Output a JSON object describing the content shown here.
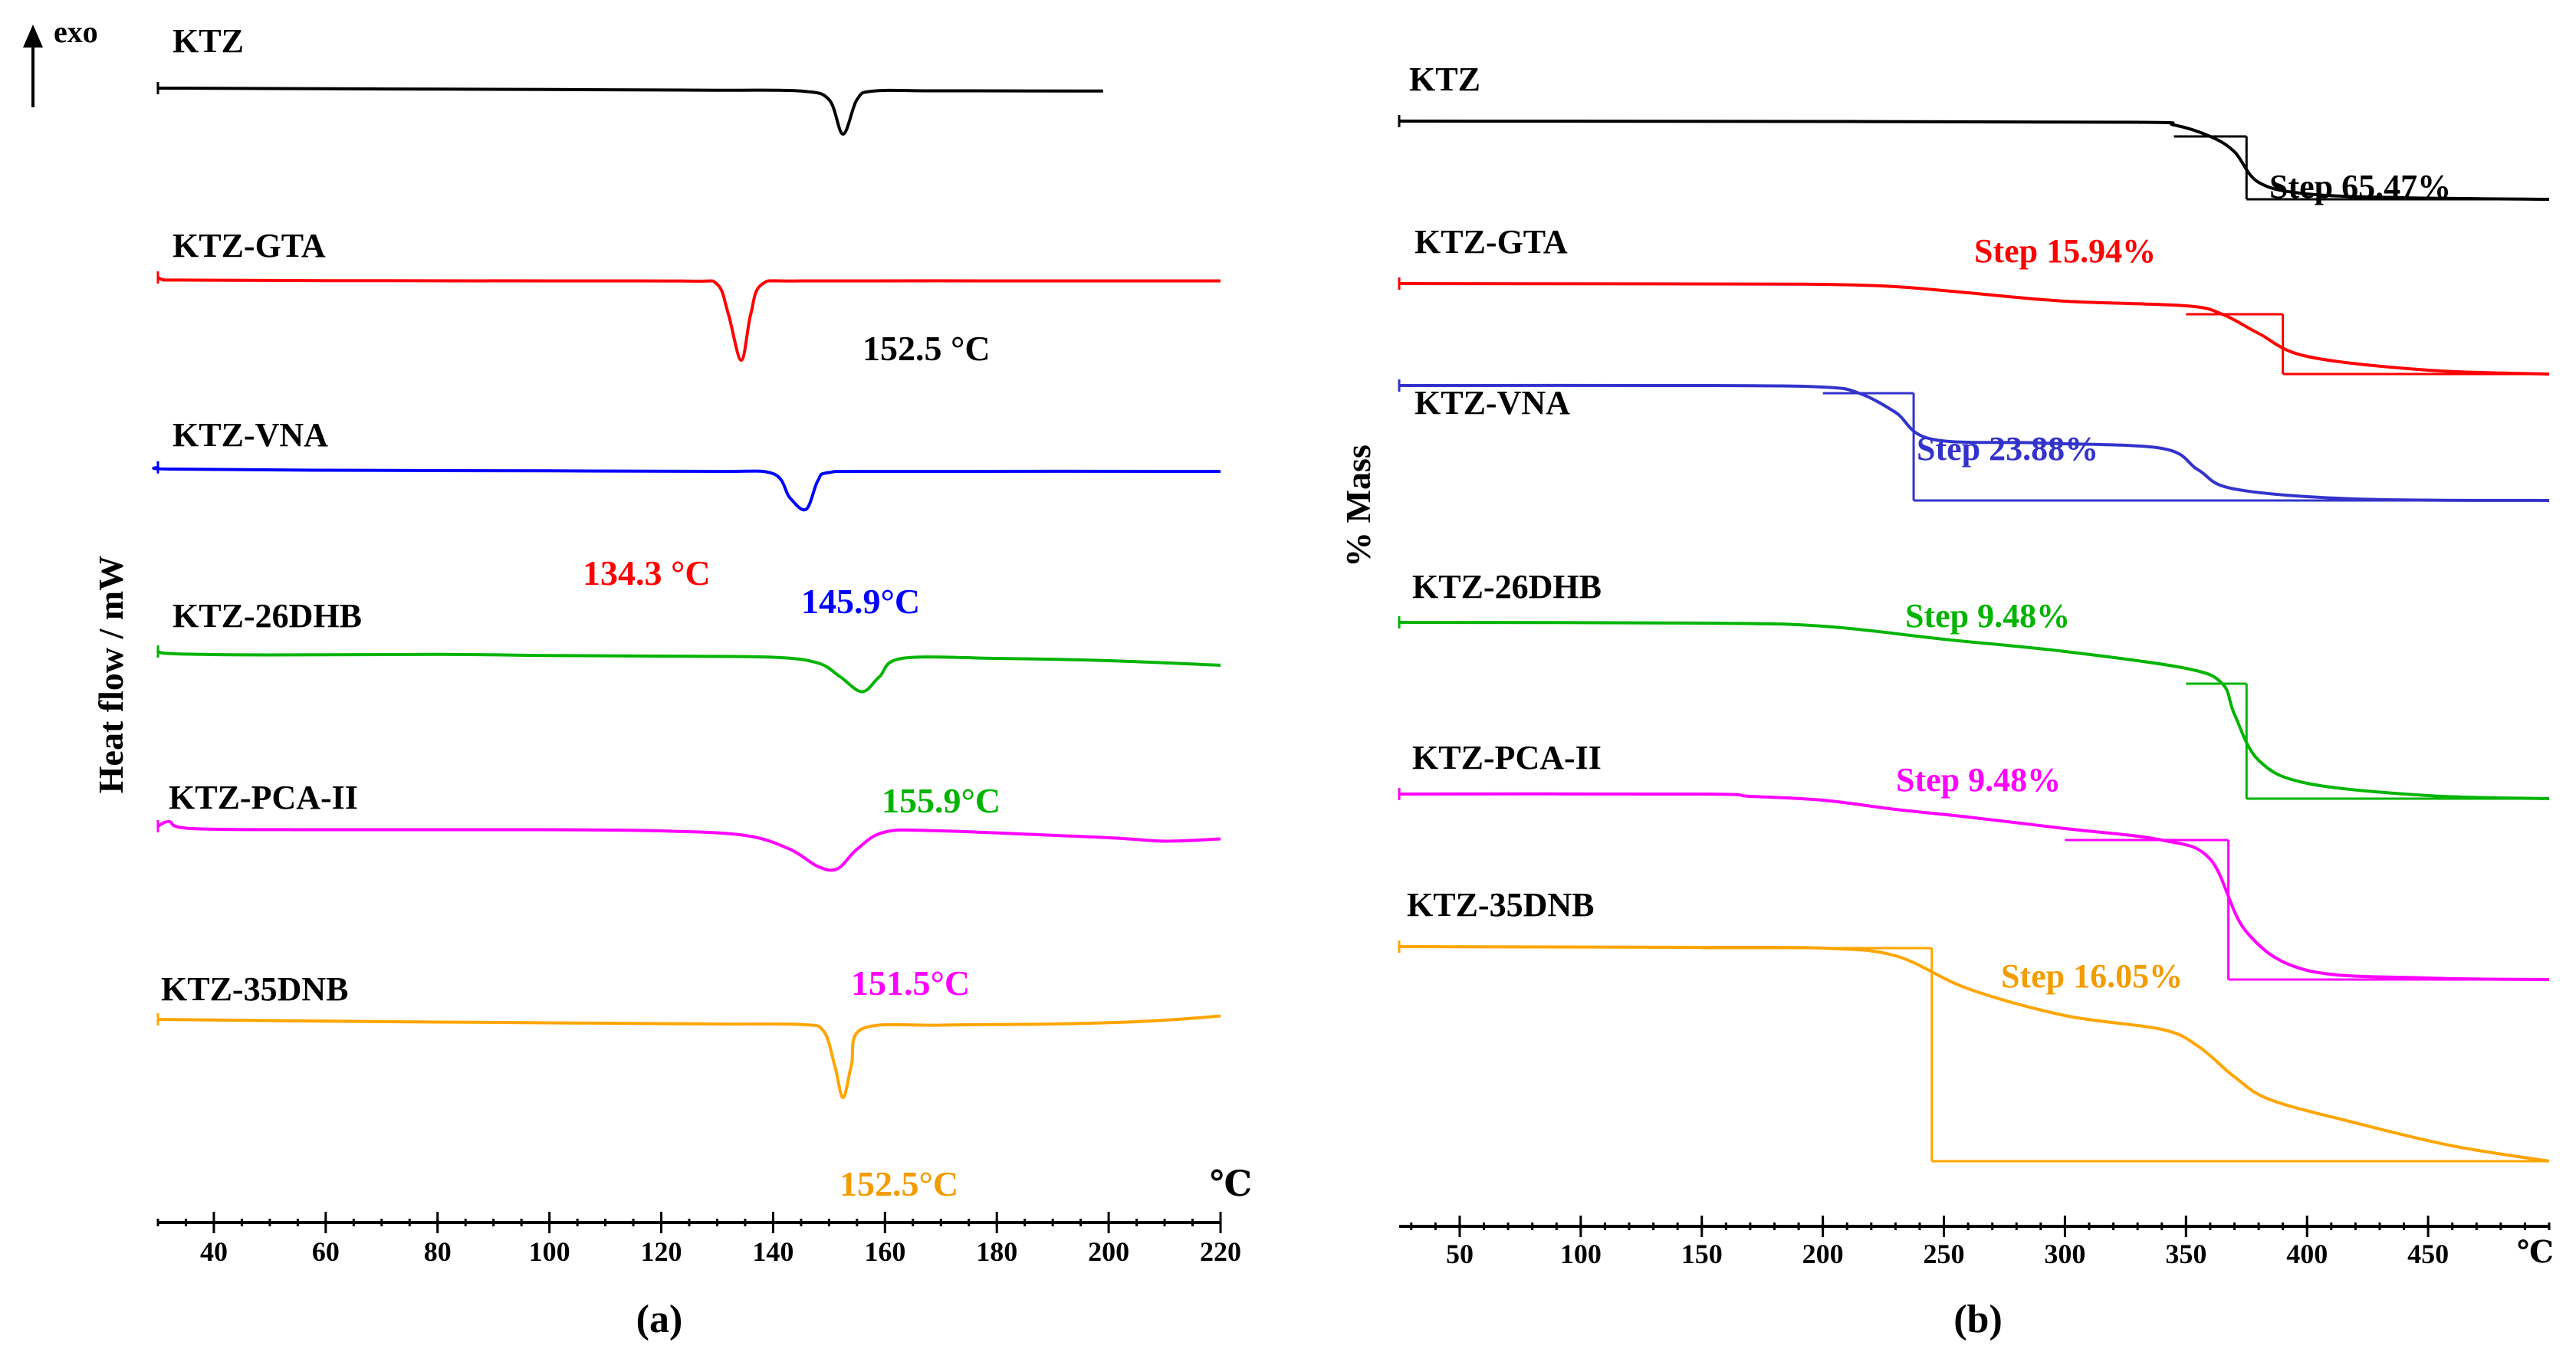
{
  "panel_a": {
    "caption": "(a)",
    "ylabel": "Heat flow / mW",
    "exo_label": "exo",
    "unit_label": "℃"
  },
  "panel_b": {
    "caption": "(b)",
    "ylabel": "% Mass",
    "unit_label": "℃"
  },
  "chart_data": [
    {
      "type": "line",
      "title": "(a)",
      "xlabel": "℃",
      "ylabel": "Heat flow / mW",
      "xlim": [
        30,
        220
      ],
      "x_ticks": [
        40,
        60,
        80,
        100,
        120,
        140,
        160,
        180,
        200,
        220
      ],
      "series": [
        {
          "name": "KTZ",
          "color": "#000000",
          "peak_label": "152.5 °C",
          "x": [
            30,
            60,
            100,
            130,
            145,
            150,
            152.5,
            155,
            158,
            170,
            199
          ],
          "y": [
            0,
            -0.5,
            -1.2,
            -1.8,
            -2.5,
            -10,
            -40,
            -10,
            -2.5,
            -2.3,
            -2.5
          ]
        },
        {
          "name": "KTZ-GTA",
          "color": "#ff0000",
          "peak_label": "134.3 °C",
          "x": [
            30,
            31,
            34,
            60,
            100,
            125,
            130,
            132,
            134.3,
            136,
            138,
            145,
            180,
            220
          ],
          "y": [
            2,
            0,
            -0.3,
            -0.8,
            -1,
            -1.2,
            -4,
            -30,
            -70,
            -30,
            -4,
            -1,
            -1,
            -1
          ]
        },
        {
          "name": "KTZ-VNA",
          "color": "#0000ff",
          "peak_label": "145.9°C",
          "x": [
            30,
            32,
            60,
            100,
            130,
            140,
            143,
            145.9,
            148,
            150,
            160,
            220
          ],
          "y": [
            1.5,
            0,
            -1,
            -1.5,
            -2,
            -4,
            -25,
            -35,
            -10,
            -3,
            -2,
            -2
          ]
        },
        {
          "name": "KTZ-26DHB",
          "color": "#00b400",
          "peak_label": "155.9°C",
          "x": [
            30,
            33,
            50,
            80,
            100,
            120,
            140,
            148,
            152,
            155.9,
            159,
            163,
            180,
            200,
            220
          ],
          "y": [
            2,
            0,
            -1,
            -0.5,
            -1.5,
            -2,
            -3,
            -8,
            -20,
            -33,
            -20,
            -4,
            -4,
            -6,
            -10
          ]
        },
        {
          "name": "KTZ-PCA-II",
          "color": "#ff00ff",
          "peak_label": "151.5°C",
          "x": [
            30,
            32,
            36,
            60,
            100,
            120,
            135,
            143,
            148,
            151.5,
            155,
            160,
            170,
            200,
            210,
            220
          ],
          "y": [
            0,
            4,
            -2,
            -3,
            -3,
            -4,
            -8,
            -20,
            -35,
            -37,
            -20,
            -5,
            -4,
            -10,
            -13,
            -11
          ]
        },
        {
          "name": "KTZ-35DNB",
          "color": "#ffa500",
          "peak_label": "152.5°C",
          "x": [
            30,
            60,
            100,
            130,
            145,
            149,
            151,
            152.5,
            154,
            156,
            170,
            190,
            205,
            215,
            220
          ],
          "y": [
            0,
            -1.5,
            -3,
            -4,
            -4.5,
            -10,
            -40,
            -68,
            -40,
            -8,
            -5,
            -4,
            -2,
            1,
            3
          ]
        }
      ]
    },
    {
      "type": "line",
      "title": "(b)",
      "xlabel": "℃",
      "ylabel": "% Mass",
      "xlim": [
        25,
        500
      ],
      "x_ticks": [
        50,
        100,
        150,
        200,
        250,
        300,
        350,
        400,
        450
      ],
      "series": [
        {
          "name": "KTZ",
          "color": "#000000",
          "step_label": "Step 65.47%",
          "x": [
            25,
            200,
            330,
            345,
            360,
            370,
            380,
            400,
            440,
            500
          ],
          "y": [
            0,
            -0.5,
            -1.5,
            -5,
            -20,
            -40,
            -80,
            -95,
            -100,
            -102
          ]
        },
        {
          "name": "KTZ-GTA",
          "color": "#ff0000",
          "step_label": "Step 15.94%",
          "x": [
            25,
            150,
            200,
            230,
            260,
            300,
            350,
            365,
            380,
            400,
            450,
            500
          ],
          "y": [
            0,
            -0.5,
            -1,
            -4,
            -12,
            -23,
            -29,
            -40,
            -65,
            -95,
            -113,
            -118
          ]
        },
        {
          "name": "KTZ-VNA",
          "color": "#3333cc",
          "step_label": "Step 23.88%",
          "x": [
            25,
            150,
            200,
            215,
            230,
            245,
            290,
            340,
            355,
            370,
            420,
            500
          ],
          "y": [
            0,
            0,
            -2,
            -10,
            -35,
            -70,
            -75,
            -82,
            -110,
            -135,
            -148,
            -150
          ]
        },
        {
          "name": "KTZ-26DHB",
          "color": "#00b400",
          "step_label": "Step 9.48%",
          "x": [
            25,
            150,
            200,
            250,
            300,
            350,
            365,
            370,
            380,
            400,
            450,
            500
          ],
          "y": [
            0,
            -1,
            -5,
            -22,
            -38,
            -60,
            -80,
            -120,
            -180,
            -210,
            -226,
            -230
          ]
        },
        {
          "name": "KTZ-PCA-II",
          "color": "#ff00ff",
          "step_label": "Step 9.48%",
          "x": [
            25,
            150,
            170,
            200,
            230,
            260,
            300,
            340,
            360,
            375,
            400,
            450,
            500
          ],
          "y": [
            0,
            0,
            -3,
            -8,
            -20,
            -30,
            -45,
            -60,
            -85,
            -180,
            -230,
            -240,
            -242
          ]
        },
        {
          "name": "KTZ-35DNB",
          "color": "#ffa500",
          "step_label": "Step 16.05%",
          "x": [
            25,
            150,
            200,
            230,
            260,
            300,
            340,
            355,
            370,
            385,
            420,
            460,
            500
          ],
          "y": [
            0,
            -1,
            -2,
            -12,
            -55,
            -90,
            -108,
            -130,
            -170,
            -200,
            -230,
            -260,
            -280
          ]
        }
      ]
    }
  ]
}
